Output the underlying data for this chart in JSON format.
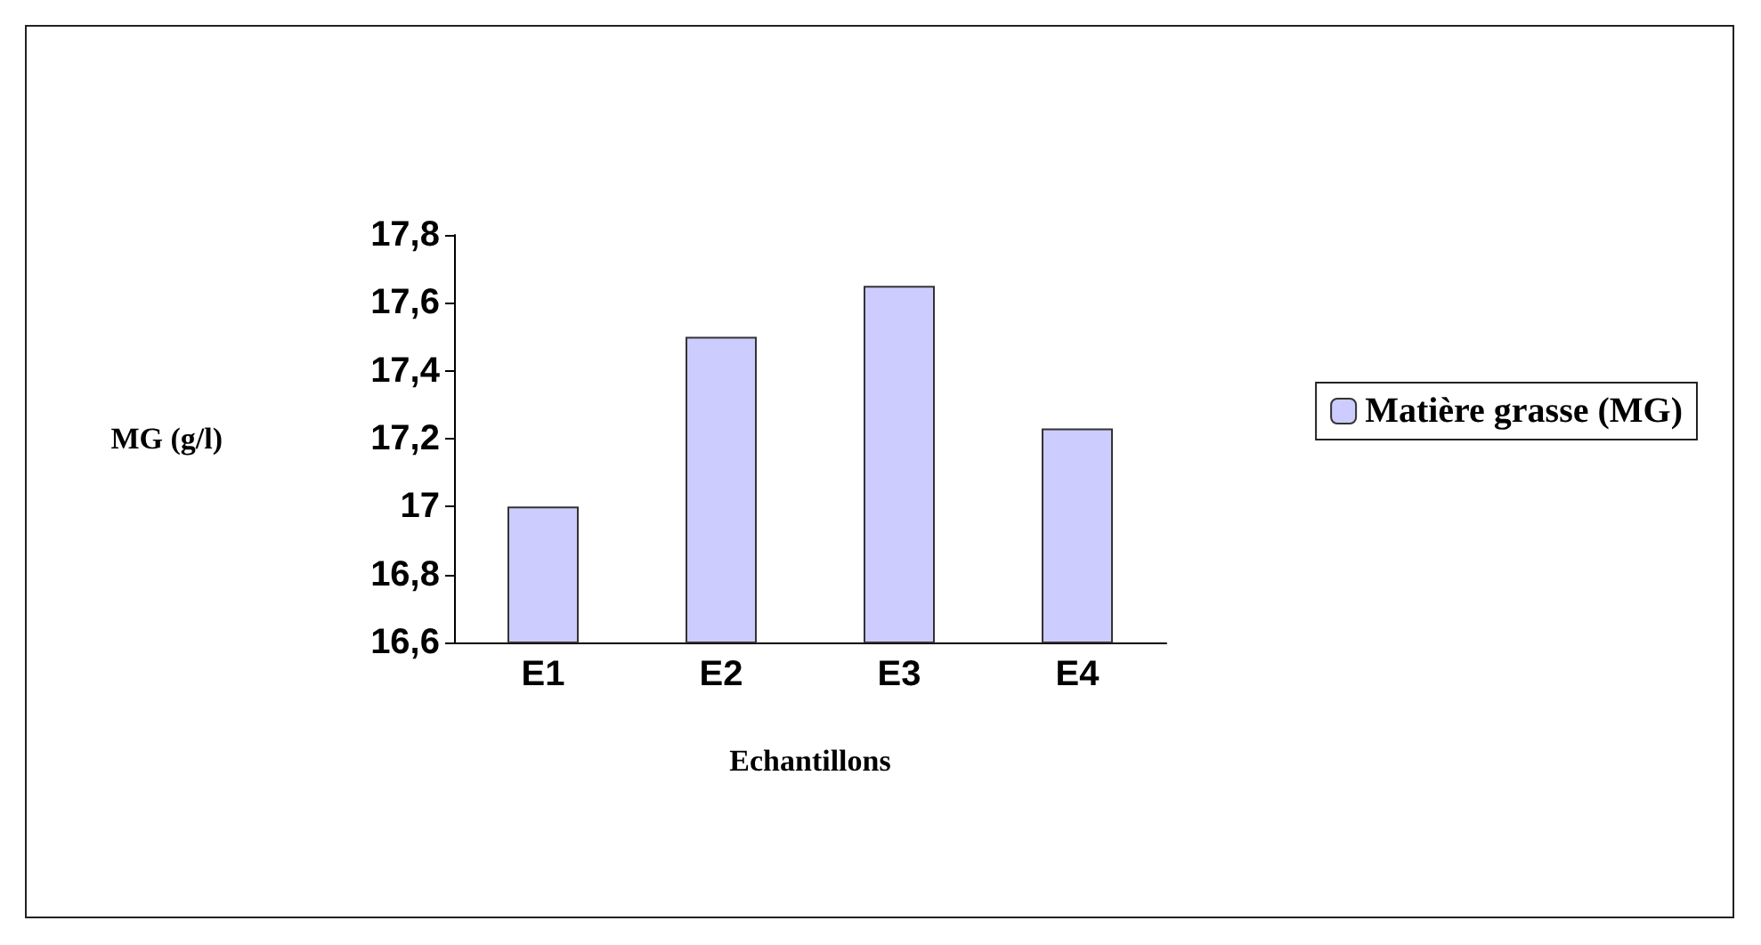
{
  "chart_data": {
    "type": "bar",
    "xlabel": "Echantillons",
    "ylabel": "MG (g/l)",
    "categories": [
      "E1",
      "E2",
      "E3",
      "E4"
    ],
    "series": [
      {
        "name": "Matière grasse (MG)",
        "color": "#ccccff",
        "values": [
          17.0,
          17.5,
          17.65,
          17.23
        ]
      }
    ],
    "ylim": [
      16.6,
      17.8
    ],
    "yticks": [
      {
        "value": 16.6,
        "label": "16,6"
      },
      {
        "value": 16.8,
        "label": "16,8"
      },
      {
        "value": 17,
        "label": "17"
      },
      {
        "value": 17.2,
        "label": "17,2"
      },
      {
        "value": 17.4,
        "label": "17,4"
      },
      {
        "value": 17.6,
        "label": "17,6"
      },
      {
        "value": 17.8,
        "label": "17,8"
      }
    ],
    "grid": false,
    "legend": "right"
  }
}
